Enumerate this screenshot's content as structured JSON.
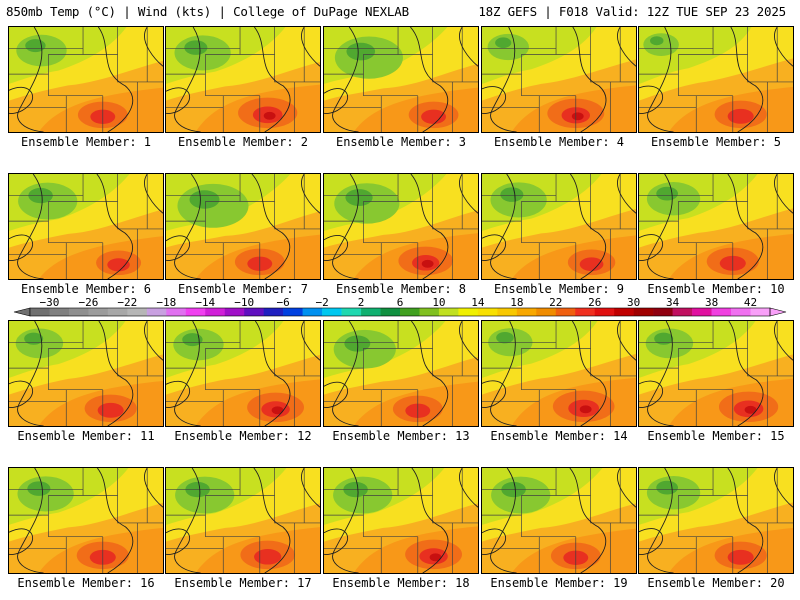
{
  "header": {
    "left": "850mb Temp (°C) | Wind (kts) | College of DuPage NEXLAB",
    "right": "18Z GEFS | F018 Valid: 12Z TUE SEP 23 2025"
  },
  "panel_label_prefix": "Ensemble Member: ",
  "members": [
    {
      "label": "Ensemble Member: 1",
      "hot": 0.55,
      "green": 0.45,
      "core": 0
    },
    {
      "label": "Ensemble Member: 2",
      "hot": 0.75,
      "green": 0.55,
      "core": 1
    },
    {
      "label": "Ensemble Member: 3",
      "hot": 0.55,
      "green": 0.75,
      "core": 0
    },
    {
      "label": "Ensemble Member: 4",
      "hot": 0.7,
      "green": 0.3,
      "core": 1
    },
    {
      "label": "Ensemble Member: 5",
      "hot": 0.6,
      "green": 0.2,
      "core": 0
    },
    {
      "label": "Ensemble Member: 6",
      "hot": 0.45,
      "green": 0.6,
      "core": 0
    },
    {
      "label": "Ensemble Member: 7",
      "hot": 0.55,
      "green": 0.8,
      "core": 0
    },
    {
      "label": "Ensemble Member: 8",
      "hot": 0.65,
      "green": 0.7,
      "core": 1
    },
    {
      "label": "Ensemble Member: 9",
      "hot": 0.5,
      "green": 0.55,
      "core": 0
    },
    {
      "label": "Ensemble Member: 10",
      "hot": 0.6,
      "green": 0.5,
      "core": 0
    },
    {
      "label": "Ensemble Member: 11",
      "hot": 0.6,
      "green": 0.4,
      "core": 0
    },
    {
      "label": "Ensemble Member: 12",
      "hot": 0.7,
      "green": 0.45,
      "core": 1
    },
    {
      "label": "Ensemble Member: 13",
      "hot": 0.55,
      "green": 0.65,
      "core": 0
    },
    {
      "label": "Ensemble Member: 14",
      "hot": 0.8,
      "green": 0.35,
      "core": 1
    },
    {
      "label": "Ensemble Member: 15",
      "hot": 0.75,
      "green": 0.4,
      "core": 1
    },
    {
      "label": "Ensemble Member: 16",
      "hot": 0.6,
      "green": 0.55,
      "core": 0
    },
    {
      "label": "Ensemble Member: 17",
      "hot": 0.65,
      "green": 0.6,
      "core": 0
    },
    {
      "label": "Ensemble Member: 18",
      "hot": 0.7,
      "green": 0.6,
      "core": 1
    },
    {
      "label": "Ensemble Member: 19",
      "hot": 0.55,
      "green": 0.6,
      "core": 0
    },
    {
      "label": "Ensemble Member: 20",
      "hot": 0.6,
      "green": 0.5,
      "core": 0
    }
  ],
  "colorbar": {
    "min": -32,
    "max": 44,
    "step": 2,
    "tick_labels": [
      "-30",
      "-26",
      "-22",
      "-18",
      "-14",
      "-10",
      "-6",
      "-2",
      "2",
      "6",
      "10",
      "14",
      "18",
      "22",
      "26",
      "30",
      "34",
      "38",
      "42"
    ],
    "colors": [
      "#707070",
      "#808080",
      "#8f8f8f",
      "#9c9c9c",
      "#a8a8a8",
      "#b6b6b6",
      "#c8a0e0",
      "#e070f0",
      "#f040f0",
      "#d020d8",
      "#a010c8",
      "#6010c0",
      "#2020c0",
      "#0040e0",
      "#0090f0",
      "#00c8f0",
      "#20d8b0",
      "#10b070",
      "#109040",
      "#40a020",
      "#80c020",
      "#c0e020",
      "#f0f000",
      "#f8e000",
      "#f8c800",
      "#f8a800",
      "#f08c00",
      "#f06010",
      "#f03020",
      "#e01010",
      "#c00000",
      "#a00000",
      "#900010",
      "#c01060",
      "#e010a0",
      "#f040e0",
      "#f070f0",
      "#f8a0f8"
    ]
  }
}
